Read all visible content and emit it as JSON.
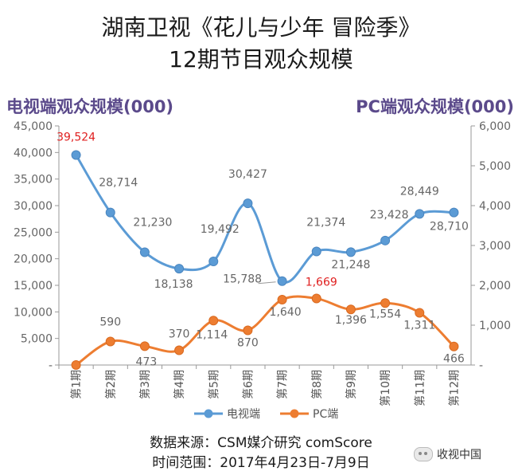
{
  "title": {
    "line1": "湖南卫视《花儿与少年 冒险季》",
    "line2": "12期节目观众规模"
  },
  "footer": {
    "source": "数据来源：CSM媒介研究 comScore",
    "period": "时间范围：2017年4月23日-7月9日"
  },
  "watermark": {
    "text": "收视中国",
    "icon": "wechat-icon"
  },
  "colors": {
    "tv": "#5b9bd5",
    "pc": "#ed7d31",
    "highlight": "#e02020",
    "axis_title": "#5b4a8b"
  },
  "chart_data": {
    "type": "line",
    "title": "",
    "left_axis_title": "电视端观众规模(000)",
    "right_axis_title": "PC端观众规模(000)",
    "categories": [
      "第1期",
      "第2期",
      "第3期",
      "第4期",
      "第5期",
      "第6期",
      "第7期",
      "第8期",
      "第9期",
      "第10期",
      "第11期",
      "第12期"
    ],
    "y_left": {
      "range": [
        0,
        45000
      ],
      "ticks": [
        0,
        5000,
        10000,
        15000,
        20000,
        25000,
        30000,
        35000,
        40000,
        45000
      ],
      "tick_labels": [
        "-",
        "5,000",
        "10,000",
        "15,000",
        "20,000",
        "25,000",
        "30,000",
        "35,000",
        "40,000",
        "45,000"
      ]
    },
    "y_right": {
      "range": [
        0,
        6000
      ],
      "ticks": [
        0,
        1000,
        2000,
        3000,
        4000,
        5000,
        6000
      ],
      "tick_labels": [
        "-",
        "1,000",
        "2,000",
        "3,000",
        "4,000",
        "5,000",
        "6,000"
      ]
    },
    "series": [
      {
        "name": "电视端",
        "axis": "left",
        "values": [
          39524,
          28714,
          21230,
          18138,
          19492,
          30427,
          15788,
          21374,
          21248,
          23428,
          28449,
          28710
        ],
        "labels": [
          "39,524",
          "28,714",
          "21,230",
          "18,138",
          "19,492",
          "30,427",
          "15,788",
          "21,374",
          "21,248",
          "23,428",
          "28,449",
          "28,710"
        ],
        "highlight_index": 0
      },
      {
        "name": "PC端",
        "axis": "right",
        "values": [
          0,
          590,
          473,
          370,
          1114,
          870,
          1640,
          1669,
          1396,
          1554,
          1311,
          466
        ],
        "labels": [
          "",
          "590",
          "473",
          "370",
          "1,114",
          "870",
          "1,640",
          "1,669",
          "1,396",
          "1,554",
          "1,311",
          "466"
        ],
        "highlight_index": 7
      }
    ],
    "legend": [
      "电视端",
      "PC端"
    ],
    "legend_position": "bottom"
  }
}
